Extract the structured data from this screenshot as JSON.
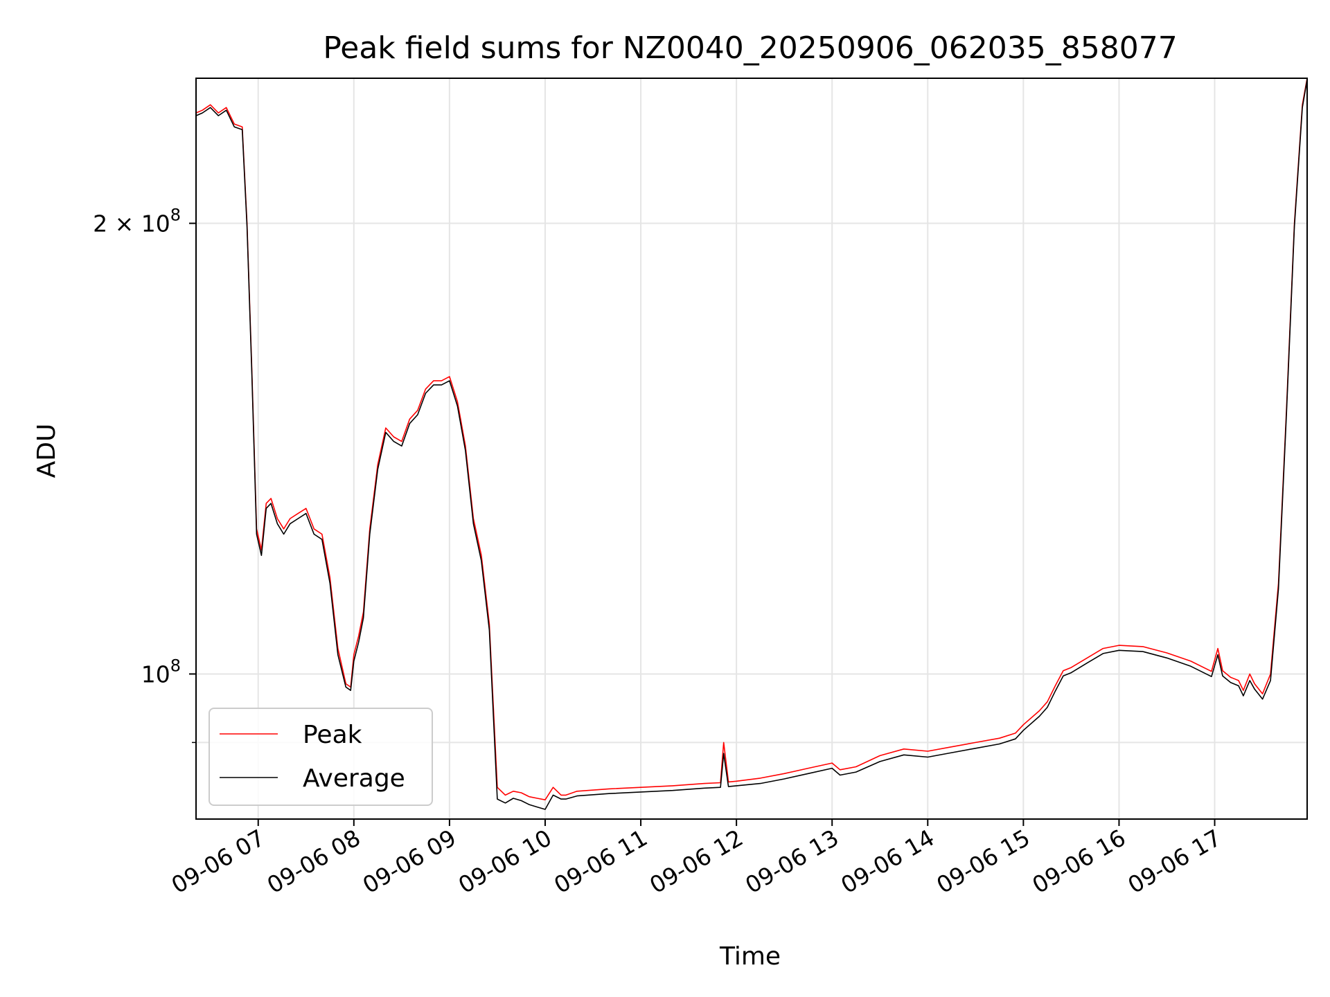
{
  "chart_data": {
    "type": "line",
    "title": "Peak field sums for NZ0040_20250906_062035_858077",
    "xlabel": "Time",
    "ylabel": "ADU",
    "y_scale": "log",
    "grid": true,
    "legend_position": "lower-left",
    "x_range": [
      "2025-09-06 06:21",
      "2025-09-06 17:58"
    ],
    "ylim": [
      80000000,
      250000000
    ],
    "x_ticks": [
      "09-06 07",
      "09-06 08",
      "09-06 09",
      "09-06 10",
      "09-06 11",
      "09-06 12",
      "09-06 13",
      "09-06 14",
      "09-06 15",
      "09-06 16",
      "09-06 17"
    ],
    "y_ticks": [
      {
        "value": 100000000,
        "label_base": "10",
        "label_exp": "8"
      },
      {
        "value": 200000000,
        "label_base": "2 × 10",
        "label_exp": "8"
      }
    ],
    "y_minor_ticks": [
      90000000
    ],
    "x": [
      "06:21",
      "06:25",
      "06:30",
      "06:35",
      "06:40",
      "06:45",
      "06:50",
      "06:53",
      "06:56",
      "06:59",
      "07:02",
      "07:05",
      "07:08",
      "07:12",
      "07:16",
      "07:20",
      "07:25",
      "07:30",
      "07:35",
      "07:40",
      "07:45",
      "07:50",
      "07:55",
      "07:58",
      "08:00",
      "08:03",
      "08:06",
      "08:10",
      "08:15",
      "08:20",
      "08:25",
      "08:30",
      "08:35",
      "08:40",
      "08:45",
      "08:50",
      "08:55",
      "09:00",
      "09:05",
      "09:10",
      "09:15",
      "09:20",
      "09:25",
      "09:30",
      "09:35",
      "09:40",
      "09:45",
      "09:50",
      "09:55",
      "10:00",
      "10:05",
      "10:10",
      "10:13",
      "10:20",
      "10:40",
      "11:00",
      "11:20",
      "11:40",
      "11:50",
      "11:52",
      "11:55",
      "12:00",
      "12:15",
      "12:30",
      "12:45",
      "13:00",
      "13:05",
      "13:15",
      "13:30",
      "13:45",
      "14:00",
      "14:15",
      "14:30",
      "14:45",
      "14:55",
      "15:00",
      "15:10",
      "15:15",
      "15:20",
      "15:25",
      "15:30",
      "15:40",
      "15:50",
      "16:00",
      "16:15",
      "16:30",
      "16:45",
      "16:58",
      "17:02",
      "17:05",
      "17:10",
      "17:15",
      "17:18",
      "17:22",
      "17:25",
      "17:30",
      "17:35",
      "17:40",
      "17:45",
      "17:50",
      "17:55",
      "17:58"
    ],
    "series": [
      {
        "name": "Peak",
        "color": "#ff0000",
        "values": [
          237000000,
          238000000,
          240000000,
          237000000,
          239000000,
          233000000,
          232000000,
          200000000,
          160000000,
          125000000,
          121000000,
          130000000,
          131000000,
          127000000,
          125000000,
          127000000,
          128000000,
          129000000,
          125000000,
          124000000,
          116000000,
          104000000,
          98500000,
          98000000,
          103000000,
          106000000,
          110000000,
          125000000,
          138000000,
          146000000,
          144000000,
          143000000,
          148000000,
          150000000,
          155000000,
          157000000,
          157000000,
          158000000,
          152000000,
          142000000,
          127000000,
          120000000,
          108000000,
          84000000,
          83000000,
          83500000,
          83300000,
          82800000,
          82600000,
          82400000,
          84000000,
          83000000,
          83000000,
          83500000,
          83800000,
          84000000,
          84200000,
          84500000,
          84600000,
          90000000,
          84700000,
          84800000,
          85200000,
          85800000,
          86500000,
          87200000,
          86300000,
          86700000,
          88200000,
          89100000,
          88800000,
          89400000,
          90000000,
          90600000,
          91300000,
          92500000,
          94500000,
          95800000,
          98200000,
          100500000,
          101000000,
          102500000,
          104000000,
          104500000,
          104300000,
          103300000,
          102000000,
          100400000,
          104000000,
          100500000,
          99500000,
          99000000,
          97500000,
          100000000,
          98500000,
          97000000,
          100000000,
          115000000,
          150000000,
          200000000,
          240000000,
          250000000
        ]
      },
      {
        "name": "Average",
        "color": "#000000",
        "values": [
          236000000,
          237000000,
          239000000,
          236000000,
          238000000,
          232000000,
          231000000,
          199000000,
          159000000,
          124000000,
          120000000,
          129000000,
          130000000,
          126000000,
          124000000,
          126000000,
          127000000,
          128000000,
          124000000,
          123000000,
          115000000,
          103000000,
          98000000,
          97500000,
          102000000,
          105000000,
          109000000,
          124000000,
          137000000,
          145000000,
          143000000,
          142000000,
          147000000,
          149000000,
          154000000,
          156000000,
          156000000,
          157000000,
          151000000,
          141000000,
          126000000,
          119000000,
          107000000,
          82500000,
          82000000,
          82600000,
          82300000,
          81800000,
          81500000,
          81200000,
          83000000,
          82500000,
          82500000,
          82900000,
          83200000,
          83400000,
          83600000,
          83900000,
          84000000,
          88500000,
          84100000,
          84200000,
          84500000,
          85100000,
          85800000,
          86500000,
          85600000,
          86000000,
          87400000,
          88300000,
          88000000,
          88600000,
          89200000,
          89800000,
          90500000,
          91700000,
          93700000,
          95000000,
          97400000,
          99700000,
          100200000,
          101700000,
          103200000,
          103700000,
          103500000,
          102500000,
          101200000,
          99600000,
          103000000,
          99700000,
          98700000,
          98200000,
          96700000,
          99000000,
          97700000,
          96200000,
          99000000,
          114000000,
          149000000,
          199000000,
          239000000,
          249500000
        ]
      }
    ]
  }
}
